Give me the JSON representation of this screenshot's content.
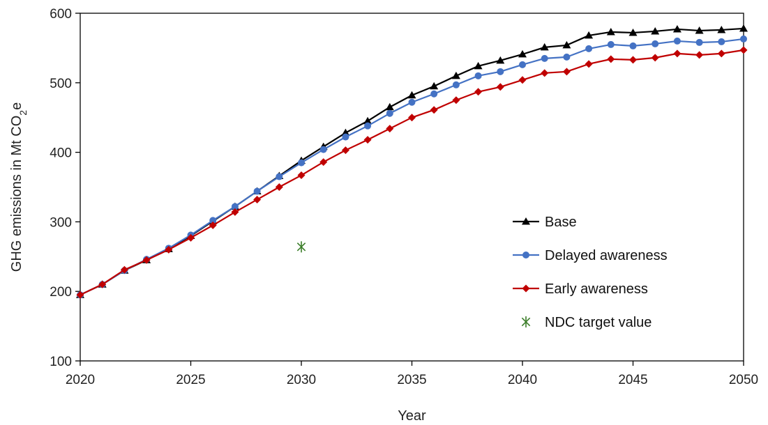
{
  "chart_data": {
    "type": "line",
    "xlabel": "Year",
    "ylabel_main": "GHG emissions in Mt CO",
    "ylabel_sub": "2",
    "ylabel_end": "e",
    "xlim": [
      2020,
      2050
    ],
    "ylim": [
      100,
      600
    ],
    "xticks": [
      2020,
      2025,
      2030,
      2035,
      2040,
      2045,
      2050
    ],
    "yticks": [
      100,
      200,
      300,
      400,
      500,
      600
    ],
    "grid": false,
    "legend_position": "right-center",
    "x": [
      2020,
      2021,
      2022,
      2023,
      2024,
      2025,
      2026,
      2027,
      2028,
      2029,
      2030,
      2031,
      2032,
      2033,
      2034,
      2035,
      2036,
      2037,
      2038,
      2039,
      2040,
      2041,
      2042,
      2043,
      2044,
      2045,
      2046,
      2047,
      2048,
      2049,
      2050
    ],
    "series": [
      {
        "name": "Base",
        "color": "#000000",
        "marker": "triangle",
        "values": [
          195,
          210,
          230,
          245,
          261,
          280,
          301,
          322,
          344,
          366,
          388,
          408,
          428,
          445,
          465,
          482,
          495,
          510,
          524,
          532,
          541,
          551,
          554,
          568,
          573,
          572,
          574,
          577,
          575,
          576,
          578
        ]
      },
      {
        "name": "Delayed awareness",
        "color": "#4472c4",
        "marker": "circle",
        "values": [
          195,
          210,
          230,
          246,
          262,
          281,
          302,
          322,
          344,
          365,
          385,
          404,
          422,
          438,
          456,
          472,
          484,
          497,
          510,
          516,
          526,
          535,
          537,
          549,
          555,
          553,
          556,
          560,
          558,
          559,
          563
        ]
      },
      {
        "name": "Early awareness",
        "color": "#c00000",
        "marker": "diamond",
        "values": [
          195,
          210,
          231,
          245,
          260,
          277,
          295,
          314,
          332,
          350,
          367,
          386,
          403,
          418,
          434,
          450,
          461,
          475,
          487,
          494,
          504,
          514,
          516,
          527,
          534,
          533,
          536,
          542,
          540,
          542,
          547
        ]
      }
    ],
    "points": [
      {
        "name": "NDC target value",
        "color": "#3a7d28",
        "marker": "asterisk",
        "x": 2030,
        "y": 264
      }
    ]
  }
}
